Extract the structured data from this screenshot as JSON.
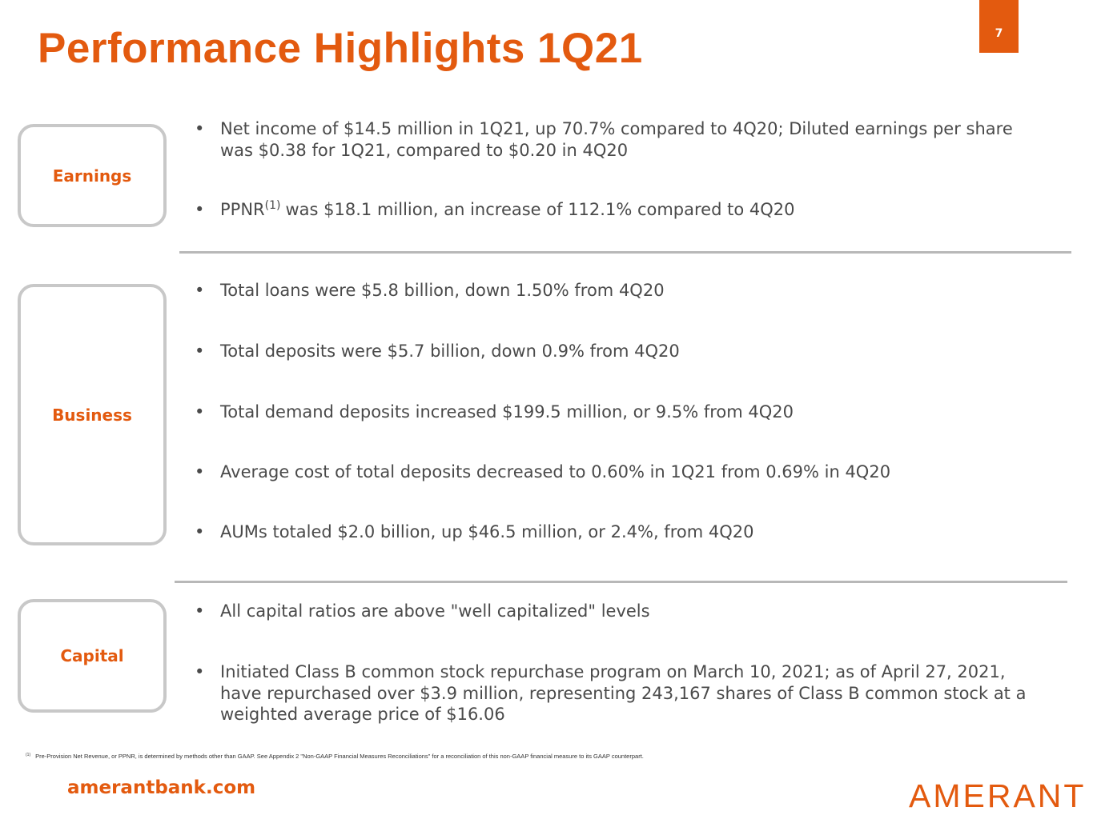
{
  "title": "Performance Highlights 1Q21",
  "page_number": "7",
  "sections": [
    {
      "label": "Earnings",
      "bullets": [
        {
          "text": "Net income of $14.5 million in 1Q21, up 70.7% compared to 4Q20; Diluted earnings per share was $0.38 for 1Q21, compared to $0.20 in 4Q20"
        },
        {
          "text": "PPNR",
          "superscript": "(1)",
          "continuation": "was $18.1 million, an increase of 112.1% compared to 4Q20"
        }
      ]
    },
    {
      "label": "Business",
      "bullets": [
        {
          "text": "Total loans were $5.8 billion, down 1.50% from 4Q20"
        },
        {
          "text": "Total deposits were $5.7 billion, down 0.9% from 4Q20"
        },
        {
          "text": "Total demand deposits increased $199.5 million, or 9.5% from 4Q20"
        },
        {
          "text": "Average cost of total deposits decreased to 0.60% in 1Q21 from 0.69% in 4Q20"
        },
        {
          "text": "AUMs totaled $2.0 billion, up $46.5 million, or 2.4%, from 4Q20"
        }
      ]
    },
    {
      "label": "Capital",
      "bullets": [
        {
          "text": "All capital ratios are above \"well capitalized\" levels"
        },
        {
          "text": "Initiated Class B common stock repurchase program on March 10, 2021; as of April 27, 2021, have repurchased over $3.9 million, representing 243,167 shares of Class B common stock at a weighted average price of $16.06"
        }
      ]
    }
  ],
  "footnote": {
    "marker": "(1)",
    "text": "Pre-Provision Net Revenue, or PPNR, is determined by methods other than GAAP. See Appendix 2 \"Non-GAAP Financial Measures Reconciliations\" for a reconciliation of this non-GAAP financial measure to its GAAP counterpart."
  },
  "website": "amerantbank.com",
  "logo": "AMERANT"
}
